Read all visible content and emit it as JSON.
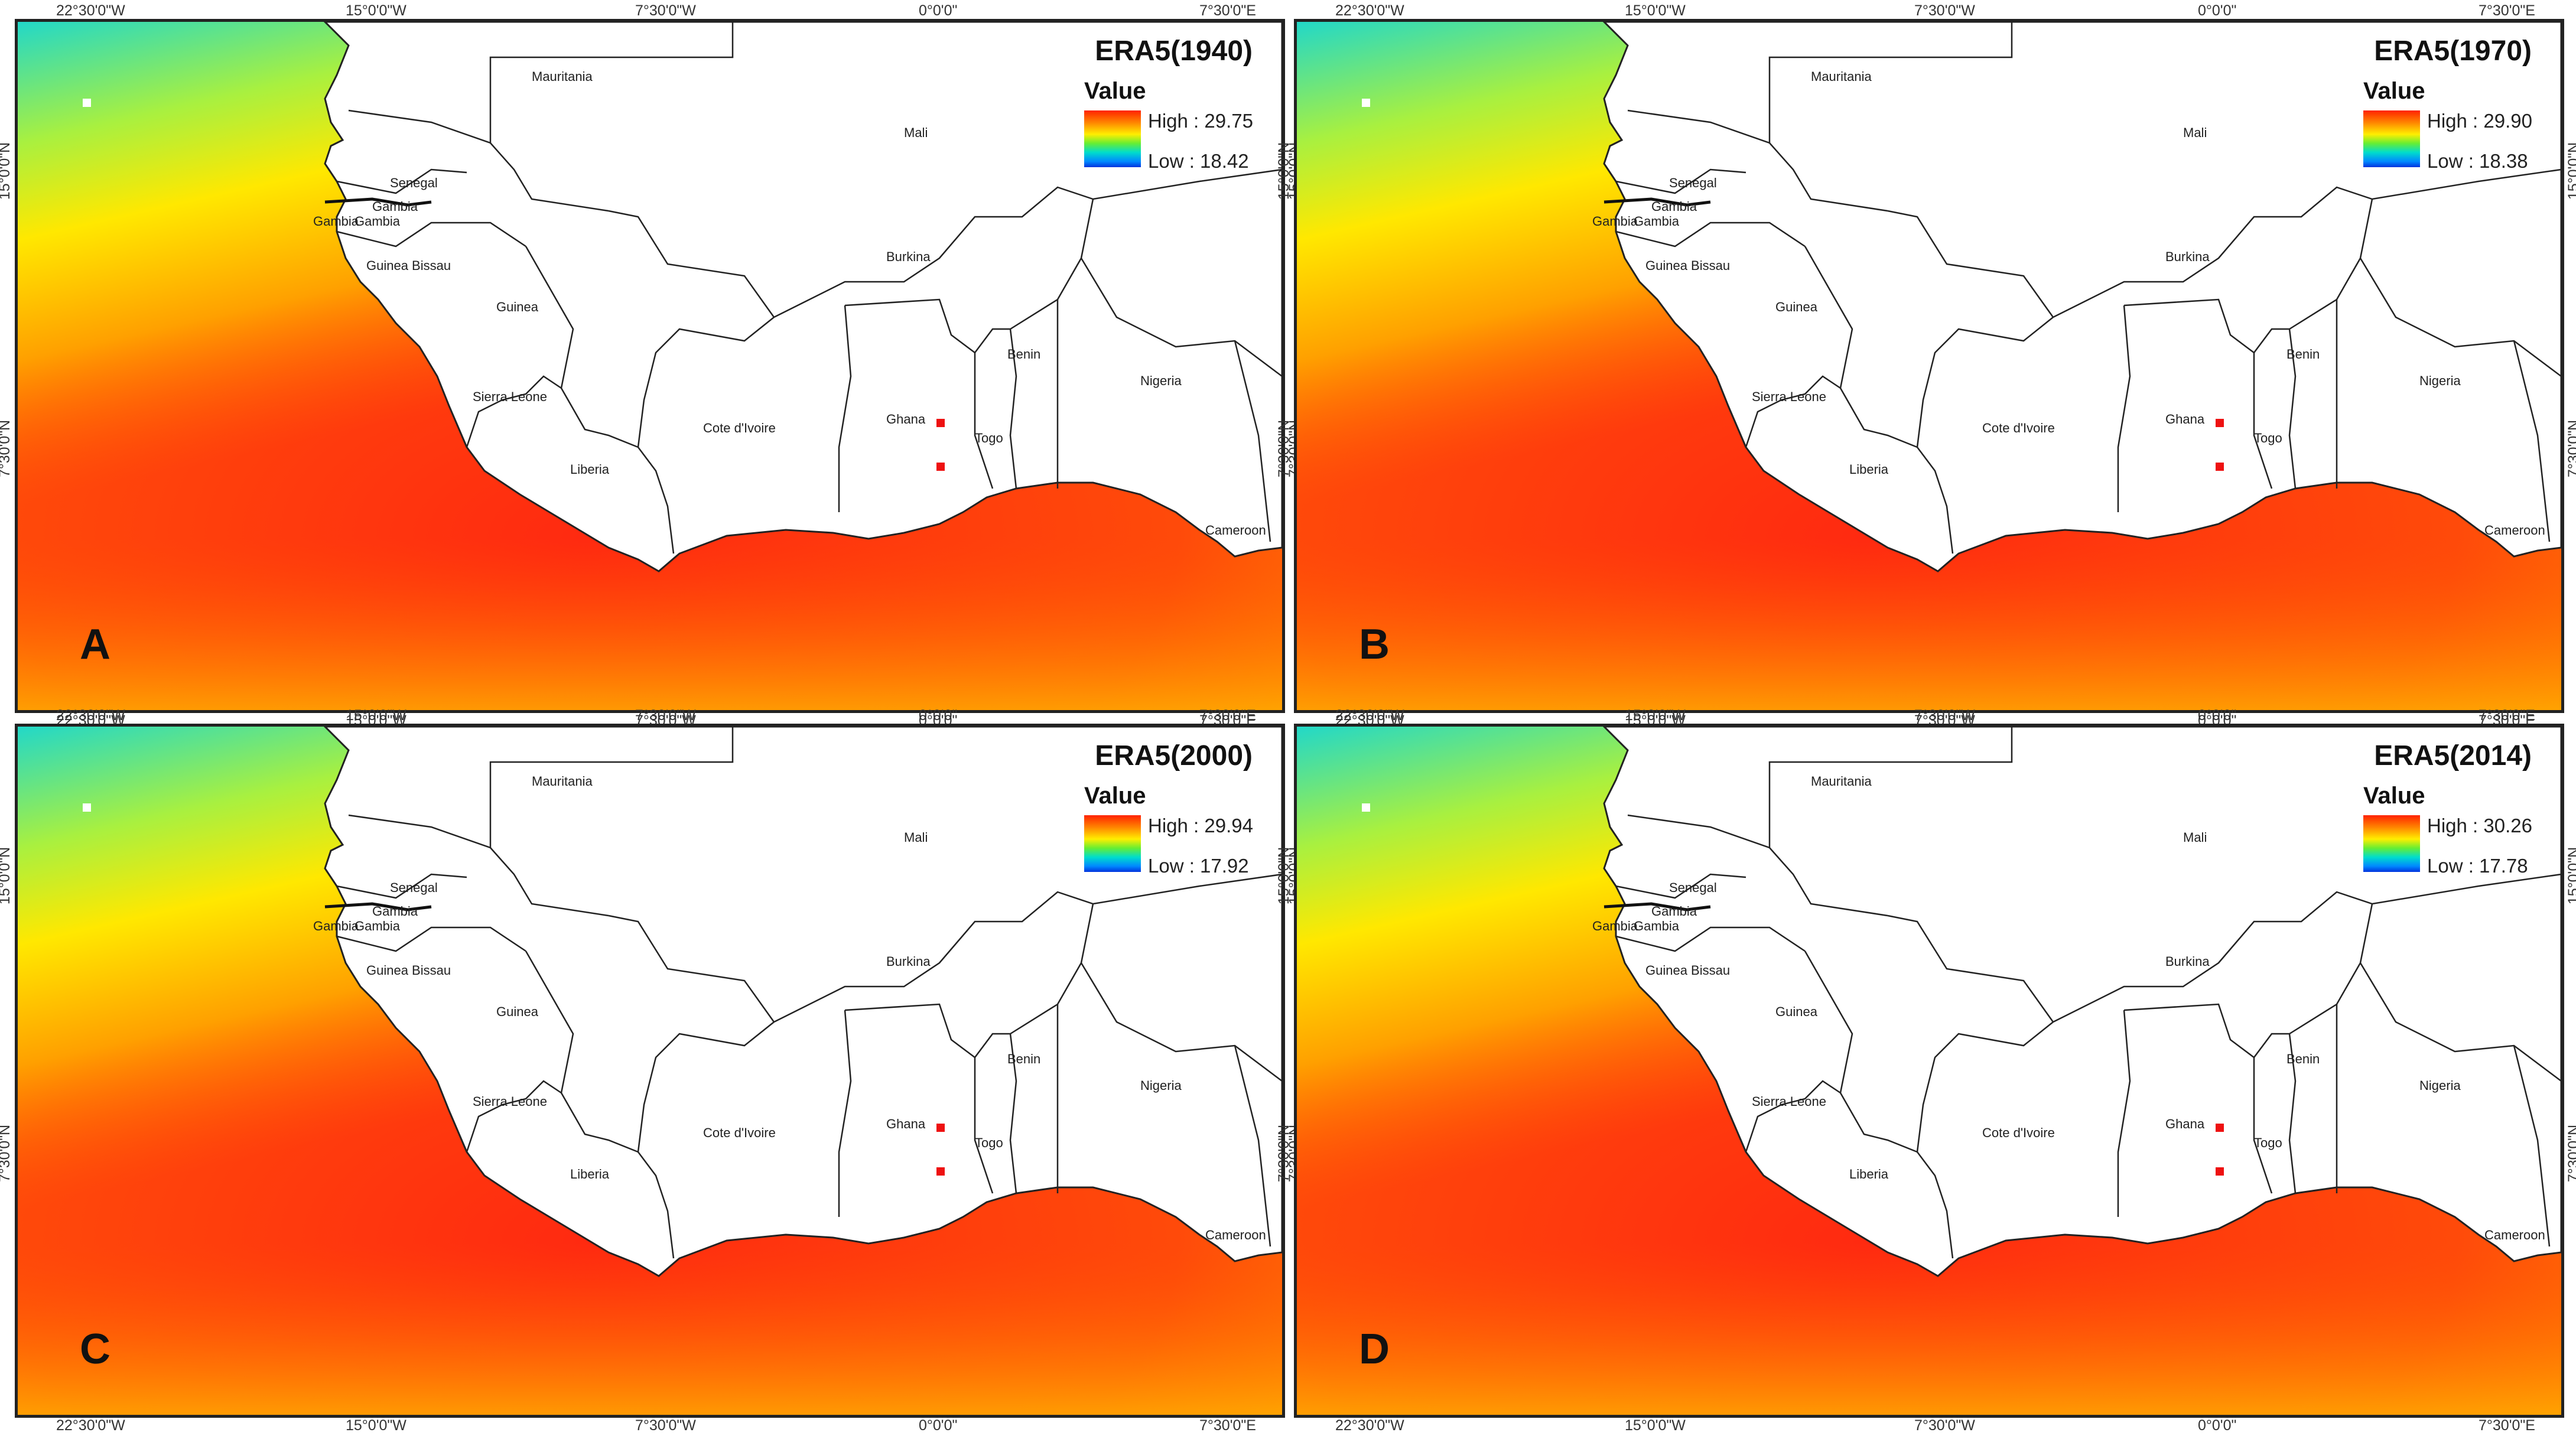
{
  "figure": {
    "lon_ticks_top": [
      "22°30'0\"W",
      "15°0'0\"W",
      "7°30'0\"W",
      "0°0'0\"",
      "7°30'0\"E"
    ],
    "lon_ticks_bottom": [
      "22°30'0\"W",
      "15°0'0\"W",
      "7°30'0\"W",
      "0°0'0\"",
      "7°30'0\"E"
    ],
    "lat_ticks": [
      "15°0'0\"N",
      "7°30'0\"N"
    ],
    "legend_title": "Value",
    "countries": [
      "Mauritania",
      "Mali",
      "Senegal",
      "Gambia",
      "Gambia",
      "Gambia",
      "Guinea Bissau",
      "Guinea",
      "Burkina",
      "Benin",
      "Nigeria",
      "Sierra Leone",
      "Cote d'Ivoire",
      "Ghana",
      "Togo",
      "Liberia",
      "Cameroon"
    ],
    "colors": {
      "high": "#ff2200",
      "low": "#0033dd",
      "ocean_hot": "#ff3a10",
      "ocean_cool": "#ffe000",
      "ocean_cold": "#33e0c8",
      "land": "#ffffff",
      "border": "#222222"
    }
  },
  "panels": [
    {
      "id": "A",
      "title": "ERA5(1940)",
      "high": "High : 29.75",
      "low": "Low : 18.42"
    },
    {
      "id": "B",
      "title": "ERA5(1970)",
      "high": "High : 29.90",
      "low": "Low : 18.38"
    },
    {
      "id": "C",
      "title": "ERA5(2000)",
      "high": "High : 29.94",
      "low": "Low : 17.92"
    },
    {
      "id": "D",
      "title": "ERA5(2014)",
      "high": "High : 30.26",
      "low": "Low : 17.78"
    }
  ]
}
